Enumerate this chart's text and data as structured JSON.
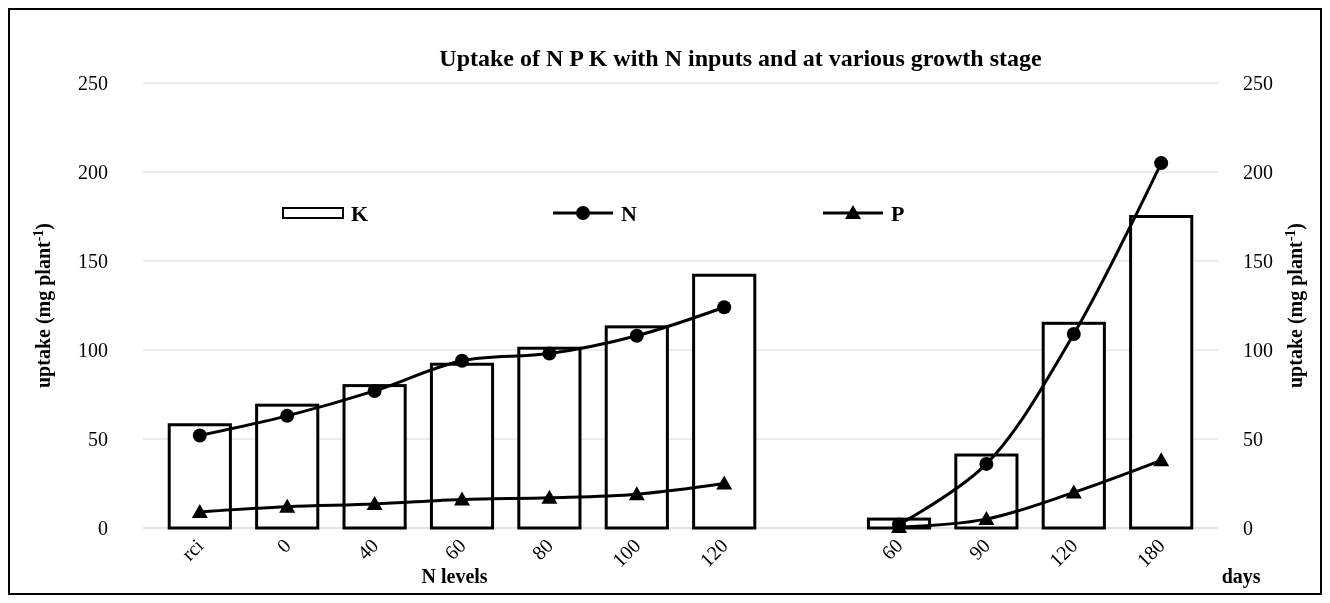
{
  "chart_data": {
    "type": "bar",
    "title": "Uptake of N P K with N inputs and at various growth stage",
    "xlabel": "N levels",
    "ylabel": "uptake (mg plant$^{-1}$)",
    "y2label": "uptake (mg plant$^{-1}$)",
    "annotations": [
      "days"
    ],
    "categories": [
      "rci",
      "0",
      "40",
      "60",
      "80",
      "100",
      "120",
      null,
      "60",
      "90",
      "120",
      "180"
    ],
    "ylim": [
      0,
      250
    ],
    "yticks": [
      0,
      50,
      100,
      150,
      200,
      250
    ],
    "y2lim": [
      0,
      250
    ],
    "y2ticks": [
      0,
      50,
      100,
      150,
      200,
      250
    ],
    "grid": "y",
    "legend": "top",
    "series": [
      {
        "name": "K",
        "color": "#ffffff",
        "values": [
          58,
          69,
          80,
          92,
          101,
          113,
          142,
          null,
          5,
          41,
          115,
          175
        ]
      },
      {
        "name": "N",
        "type": "line",
        "color": "#000000",
        "marker": "circle",
        "values": [
          52,
          63,
          77,
          94,
          98,
          108,
          124,
          null,
          2,
          36,
          109,
          205
        ]
      },
      {
        "name": "P",
        "type": "line",
        "color": "#000000",
        "marker": "triangle",
        "values": [
          9,
          12,
          13.5,
          16,
          17,
          19,
          25,
          null,
          0.5,
          5,
          20,
          38
        ]
      }
    ]
  }
}
